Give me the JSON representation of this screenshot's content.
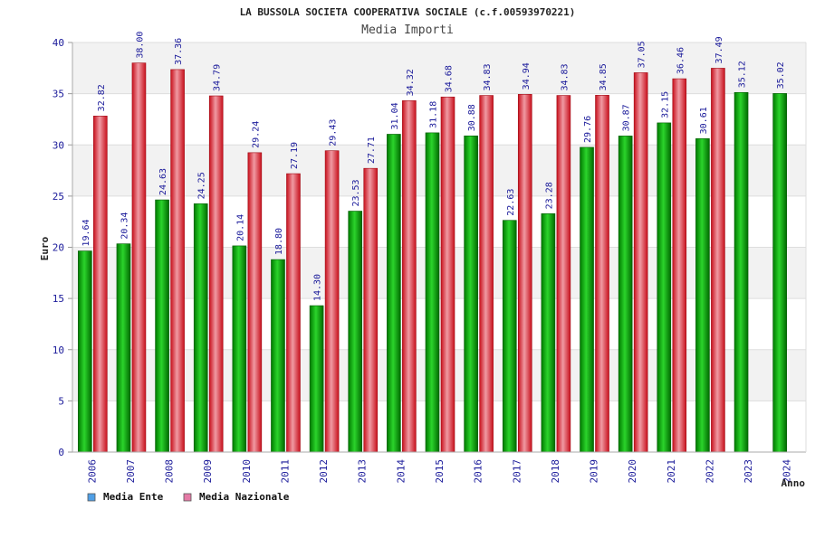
{
  "chart_data": {
    "type": "bar",
    "title": "LA BUSSOLA SOCIETA COOPERATIVA SOCIALE (c.f.00593970221)",
    "subtitle": "Media Importi",
    "ylabel": "Euro",
    "xlabel": "Anno",
    "ylim": [
      0,
      40
    ],
    "yticks": [
      0,
      5,
      10,
      15,
      20,
      25,
      30,
      35,
      40
    ],
    "grid": true,
    "legend_position": "bottom-left",
    "categories": [
      "2006",
      "2007",
      "2008",
      "2009",
      "2010",
      "2011",
      "2012",
      "2013",
      "2014",
      "2015",
      "2016",
      "2017",
      "2018",
      "2019",
      "2020",
      "2021",
      "2022",
      "2023",
      "2024"
    ],
    "series": [
      {
        "name": "Media Ente",
        "color": "#00b400",
        "legend_color": "#4f9fe6",
        "values": [
          19.64,
          20.34,
          24.63,
          24.25,
          20.14,
          18.8,
          14.3,
          23.53,
          31.04,
          31.18,
          30.88,
          22.63,
          23.28,
          29.76,
          30.87,
          32.15,
          30.61,
          35.12,
          35.02
        ],
        "labels": [
          "19.64",
          "20.34",
          "24.63",
          "24.25",
          "20.14",
          "18.80",
          "14.30",
          "23.53",
          "31.04",
          "31.18",
          "30.88",
          "22.63",
          "23.28",
          "29.76",
          "30.87",
          "32.15",
          "30.61",
          "35.12",
          "35.02"
        ]
      },
      {
        "name": "Media Nazionale",
        "color": "#e8212f",
        "legend_color": "#e57aa6",
        "values": [
          32.82,
          38.0,
          37.36,
          34.79,
          29.24,
          27.19,
          29.43,
          27.71,
          34.32,
          34.68,
          34.83,
          34.94,
          34.83,
          34.85,
          37.05,
          36.46,
          37.49,
          null,
          null
        ],
        "labels": [
          "32.82",
          "38.00",
          "37.36",
          "34.79",
          "29.24",
          "27.19",
          "29.43",
          "27.71",
          "34.32",
          "34.68",
          "34.83",
          "34.94",
          "34.83",
          "34.85",
          "37.05",
          "36.46",
          "37.49",
          null,
          null
        ]
      }
    ]
  }
}
